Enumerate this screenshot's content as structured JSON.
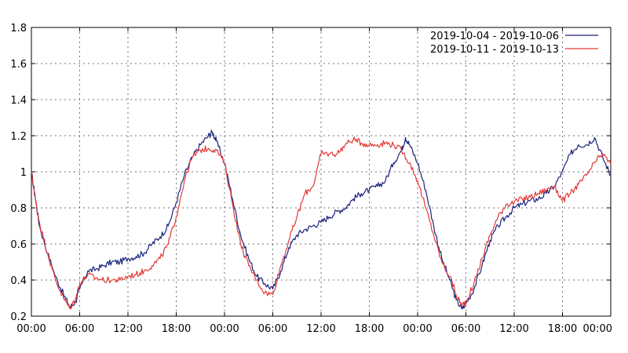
{
  "chart_data": {
    "type": "line",
    "title": "",
    "xlabel": "",
    "ylabel": "",
    "ylim": [
      0.2,
      1.8
    ],
    "yticks": [
      "0.2",
      "0.4",
      "0.6",
      "0.8",
      "1",
      "1.2",
      "1.4",
      "1.6",
      "1.8"
    ],
    "xlim": [
      0,
      72
    ],
    "xticks": [
      "00:00",
      "06:00",
      "12:00",
      "18:00",
      "00:00",
      "06:00",
      "12:00",
      "18:00",
      "00:00",
      "06:00",
      "12:00",
      "18:00",
      "00:00"
    ],
    "grid": true,
    "legend_position": "top-right",
    "series": [
      {
        "name": "2019-10-04 - 2019-10-06",
        "color": "#1a237e",
        "x": [
          0,
          0.5,
          1,
          2,
          3,
          4,
          4.8,
          5.5,
          6,
          7,
          8,
          9,
          10,
          11,
          12,
          13,
          14,
          15,
          16,
          17,
          18,
          19,
          20,
          21,
          22,
          22.5,
          23,
          24,
          25,
          26,
          27,
          28,
          29,
          30,
          31,
          32,
          33,
          34,
          35,
          36,
          37,
          38,
          39,
          40,
          41,
          42,
          43,
          44,
          45,
          46,
          46.5,
          47,
          48,
          49,
          50,
          51,
          52,
          52.8,
          53.5,
          54,
          55,
          56,
          57,
          58,
          59,
          60,
          61,
          62,
          63,
          64,
          65,
          66,
          67,
          68,
          69,
          70,
          71,
          72
        ],
        "y": [
          1.0,
          0.85,
          0.7,
          0.55,
          0.42,
          0.32,
          0.25,
          0.28,
          0.35,
          0.45,
          0.46,
          0.48,
          0.5,
          0.5,
          0.52,
          0.53,
          0.55,
          0.6,
          0.64,
          0.7,
          0.83,
          0.98,
          1.08,
          1.15,
          1.2,
          1.22,
          1.17,
          1.05,
          0.85,
          0.65,
          0.52,
          0.42,
          0.38,
          0.35,
          0.45,
          0.58,
          0.65,
          0.68,
          0.7,
          0.72,
          0.75,
          0.78,
          0.8,
          0.85,
          0.88,
          0.9,
          0.92,
          0.95,
          1.05,
          1.12,
          1.19,
          1.15,
          1.05,
          0.9,
          0.7,
          0.52,
          0.4,
          0.29,
          0.24,
          0.27,
          0.35,
          0.48,
          0.62,
          0.7,
          0.75,
          0.8,
          0.82,
          0.84,
          0.85,
          0.88,
          0.92,
          1.0,
          1.1,
          1.15,
          1.15,
          1.19,
          1.08,
          0.98
        ]
      },
      {
        "name": "2019-10-11 - 2019-10-13",
        "color": "#e53935",
        "x": [
          0,
          0.5,
          1,
          2,
          3,
          4,
          4.8,
          5.5,
          6,
          7,
          8,
          9,
          10,
          11,
          12,
          13,
          14,
          15,
          16,
          17,
          18,
          19,
          20,
          21,
          22,
          23,
          24,
          25,
          26,
          27,
          28,
          29,
          30,
          31,
          32,
          33,
          34,
          35,
          36,
          37,
          38,
          39,
          40,
          41,
          42,
          43,
          44,
          45,
          46,
          47,
          48,
          49,
          50,
          51,
          52,
          53,
          53.5,
          54,
          55,
          56,
          57,
          58,
          59,
          60,
          61,
          62,
          63,
          64,
          65,
          66,
          67,
          68,
          69,
          70,
          71,
          72
        ],
        "y": [
          1.0,
          0.85,
          0.72,
          0.55,
          0.4,
          0.3,
          0.24,
          0.3,
          0.38,
          0.43,
          0.41,
          0.4,
          0.4,
          0.4,
          0.42,
          0.43,
          0.45,
          0.48,
          0.52,
          0.6,
          0.75,
          0.95,
          1.08,
          1.12,
          1.13,
          1.12,
          1.05,
          0.82,
          0.6,
          0.48,
          0.4,
          0.33,
          0.32,
          0.48,
          0.62,
          0.75,
          0.88,
          0.92,
          1.1,
          1.1,
          1.1,
          1.15,
          1.18,
          1.16,
          1.15,
          1.15,
          1.16,
          1.15,
          1.12,
          1.05,
          0.95,
          0.8,
          0.65,
          0.5,
          0.42,
          0.3,
          0.26,
          0.28,
          0.38,
          0.52,
          0.65,
          0.75,
          0.82,
          0.83,
          0.85,
          0.86,
          0.88,
          0.9,
          0.92,
          0.84,
          0.88,
          0.93,
          0.98,
          1.05,
          1.1,
          1.04
        ]
      }
    ]
  }
}
